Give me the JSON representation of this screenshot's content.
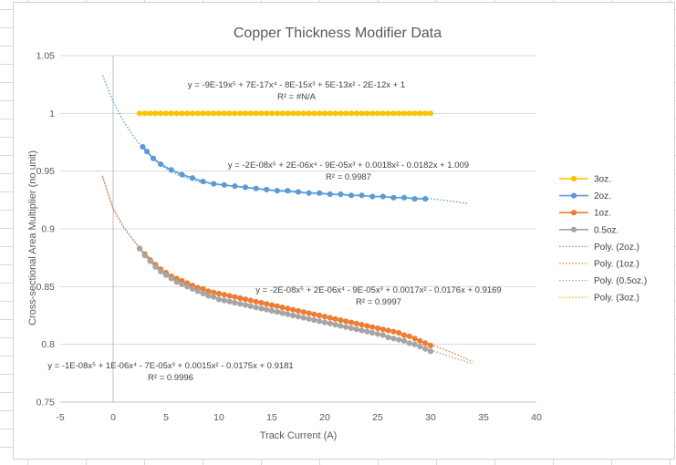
{
  "chart_data": {
    "type": "scatter",
    "title": "Copper Thickness Modifier Data",
    "xlabel": "Track Current (A)",
    "ylabel": "Cross-sectional Area Multiplier (no unit)",
    "xlim": [
      -5,
      40
    ],
    "ylim": [
      0.75,
      1.05
    ],
    "x_ticks": [
      "-5",
      "0",
      "5",
      "10",
      "15",
      "20",
      "25",
      "30",
      "35",
      "40"
    ],
    "y_ticks": [
      "0.75",
      "0.8",
      "0.85",
      "0.9",
      "0.95",
      "1",
      "1.05"
    ],
    "grid": "horizontal",
    "legend": "right",
    "series": [
      {
        "name": "3oz.",
        "color": "#FFC000",
        "x": [
          2.5,
          3,
          3.5,
          4,
          4.5,
          5,
          5.5,
          6,
          6.5,
          7,
          7.5,
          8,
          8.5,
          9,
          9.5,
          10,
          10.5,
          11,
          11.5,
          12,
          12.5,
          13,
          13.5,
          14,
          14.5,
          15,
          15.5,
          16,
          16.5,
          17,
          17.5,
          18,
          18.5,
          19,
          19.5,
          20,
          20.5,
          21,
          21.5,
          22,
          22.5,
          23,
          23.5,
          24,
          24.5,
          25,
          25.5,
          26,
          26.5,
          27,
          27.5,
          28,
          28.5,
          29,
          29.5,
          30
        ],
        "y": [
          1,
          1,
          1,
          1,
          1,
          1,
          1,
          1,
          1,
          1,
          1,
          1,
          1,
          1,
          1,
          1,
          1,
          1,
          1,
          1,
          1,
          1,
          1,
          1,
          1,
          1,
          1,
          1,
          1,
          1,
          1,
          1,
          1,
          1,
          1,
          1,
          1,
          1,
          1,
          1,
          1,
          1,
          1,
          1,
          1,
          1,
          1,
          1,
          1,
          1,
          1,
          1,
          1,
          1,
          1,
          1
        ]
      },
      {
        "name": "2oz.",
        "color": "#5B9BD5",
        "x": [
          2.8,
          3.2,
          3.8,
          4.5,
          5.5,
          6.5,
          7.5,
          8.5,
          9.5,
          10.5,
          11.5,
          12.5,
          13.5,
          14.5,
          15.5,
          16.5,
          17.5,
          18.5,
          19.5,
          20.5,
          21.5,
          22.5,
          23.5,
          24.5,
          25.5,
          26.5,
          27.5,
          28.5,
          29.5
        ],
        "y": [
          0.971,
          0.967,
          0.961,
          0.956,
          0.951,
          0.947,
          0.944,
          0.941,
          0.939,
          0.938,
          0.937,
          0.936,
          0.935,
          0.934,
          0.933,
          0.933,
          0.932,
          0.931,
          0.931,
          0.93,
          0.93,
          0.929,
          0.929,
          0.928,
          0.928,
          0.927,
          0.927,
          0.926,
          0.926
        ]
      },
      {
        "name": "1oz.",
        "color": "#ED7D31",
        "x": [
          2.5,
          3,
          3.5,
          4,
          4.5,
          5,
          5.5,
          6,
          6.5,
          7,
          7.5,
          8,
          8.5,
          9,
          9.5,
          10,
          10.5,
          11,
          11.5,
          12,
          12.5,
          13,
          13.5,
          14,
          14.5,
          15,
          15.5,
          16,
          16.5,
          17,
          17.5,
          18,
          18.5,
          19,
          19.5,
          20,
          20.5,
          21,
          21.5,
          22,
          22.5,
          23,
          23.5,
          24,
          24.5,
          25,
          25.5,
          26,
          26.5,
          27,
          27.5,
          28,
          28.5,
          29,
          29.5,
          30
        ],
        "y": [
          0.883,
          0.878,
          0.873,
          0.869,
          0.865,
          0.862,
          0.859,
          0.857,
          0.855,
          0.853,
          0.851,
          0.849,
          0.848,
          0.846,
          0.845,
          0.844,
          0.843,
          0.842,
          0.841,
          0.84,
          0.839,
          0.838,
          0.837,
          0.836,
          0.835,
          0.834,
          0.833,
          0.832,
          0.831,
          0.83,
          0.829,
          0.828,
          0.827,
          0.826,
          0.825,
          0.824,
          0.823,
          0.822,
          0.821,
          0.82,
          0.819,
          0.818,
          0.817,
          0.816,
          0.815,
          0.814,
          0.813,
          0.812,
          0.811,
          0.81,
          0.808,
          0.807,
          0.805,
          0.803,
          0.801,
          0.799
        ]
      },
      {
        "name": "0.5oz.",
        "color": "#A5A5A5",
        "x": [
          2.5,
          3,
          3.5,
          4,
          4.5,
          5,
          5.5,
          6,
          6.5,
          7,
          7.5,
          8,
          8.5,
          9,
          9.5,
          10,
          10.5,
          11,
          11.5,
          12,
          12.5,
          13,
          13.5,
          14,
          14.5,
          15,
          15.5,
          16,
          16.5,
          17,
          17.5,
          18,
          18.5,
          19,
          19.5,
          20,
          20.5,
          21,
          21.5,
          22,
          22.5,
          23,
          23.5,
          24,
          24.5,
          25,
          25.5,
          26,
          26.5,
          27,
          27.5,
          28,
          28.5,
          29,
          29.5,
          30
        ],
        "y": [
          0.883,
          0.877,
          0.872,
          0.867,
          0.863,
          0.86,
          0.857,
          0.854,
          0.852,
          0.85,
          0.848,
          0.846,
          0.844,
          0.842,
          0.841,
          0.839,
          0.838,
          0.837,
          0.836,
          0.835,
          0.834,
          0.833,
          0.832,
          0.831,
          0.83,
          0.829,
          0.828,
          0.827,
          0.826,
          0.825,
          0.824,
          0.823,
          0.822,
          0.821,
          0.82,
          0.819,
          0.818,
          0.817,
          0.816,
          0.815,
          0.814,
          0.813,
          0.812,
          0.811,
          0.81,
          0.809,
          0.808,
          0.806,
          0.805,
          0.804,
          0.803,
          0.801,
          0.8,
          0.798,
          0.796,
          0.794
        ]
      }
    ],
    "trendlines": [
      {
        "name": "Poly. (2oz.)",
        "color": "#5B9BD5",
        "x": [
          -1,
          0,
          1,
          2,
          3,
          4,
          5,
          6,
          8,
          10,
          12,
          15,
          18,
          20,
          22,
          25,
          28,
          30,
          32,
          33.5
        ],
        "y": [
          1.033,
          1.01,
          0.993,
          0.979,
          0.968,
          0.959,
          0.952,
          0.947,
          0.941,
          0.938,
          0.936,
          0.933,
          0.931,
          0.93,
          0.929,
          0.928,
          0.927,
          0.926,
          0.924,
          0.922
        ]
      },
      {
        "name": "Poly. (1oz.)",
        "color": "#ED7D31",
        "x": [
          -1,
          0,
          1,
          2,
          3,
          4,
          5,
          6,
          8,
          10,
          12,
          15,
          18,
          20,
          22,
          25,
          28,
          30,
          32,
          34
        ],
        "y": [
          0.945,
          0.917,
          0.901,
          0.889,
          0.879,
          0.87,
          0.862,
          0.856,
          0.849,
          0.844,
          0.84,
          0.835,
          0.828,
          0.823,
          0.819,
          0.814,
          0.806,
          0.8,
          0.793,
          0.785
        ]
      },
      {
        "name": "Poly. (0.5oz.)",
        "color": "#A5A5A5",
        "x": [
          -1,
          0,
          1,
          2,
          3,
          4,
          5,
          6,
          8,
          10,
          12,
          15,
          18,
          20,
          22,
          25,
          28,
          30,
          32,
          34
        ],
        "y": [
          0.946,
          0.918,
          0.902,
          0.889,
          0.878,
          0.868,
          0.86,
          0.854,
          0.846,
          0.84,
          0.836,
          0.831,
          0.824,
          0.82,
          0.816,
          0.81,
          0.801,
          0.795,
          0.789,
          0.783
        ]
      },
      {
        "name": "Poly. (3oz.)",
        "color": "#FFC000",
        "x": [
          2.5,
          30
        ],
        "y": [
          1,
          1
        ]
      }
    ],
    "annotations": [
      {
        "line1": "y = -9E-19x⁵ + 7E-17x⁴ - 8E-15x³ + 5E-13x² - 2E-12x + 1",
        "line2": "R² = #N/A"
      },
      {
        "line1": "y = -2E-08x⁵ + 2E-06x⁴ - 9E-05x³ + 0.0018x² - 0.0182x + 1.009",
        "line2": "R² = 0.9987"
      },
      {
        "line1": "y = -2E-08x⁵ + 2E-06x⁴ - 9E-05x³ + 0.0017x² - 0.0176x + 0.9169",
        "line2": "R² = 0.9997"
      },
      {
        "line1": "y = -1E-08x⁵ + 1E-06x⁴ - 7E-05x³ + 0.0015x² - 0.0175x + 0.9181",
        "line2": "R² = 0.9996"
      }
    ]
  }
}
